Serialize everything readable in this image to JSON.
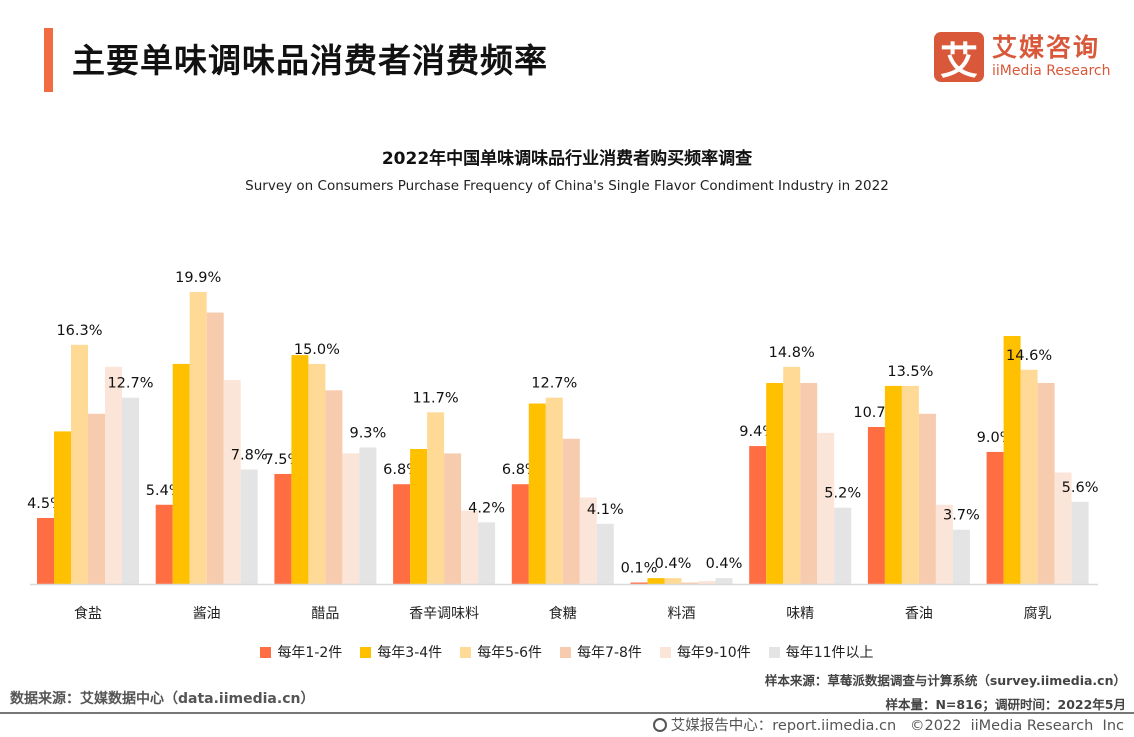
{
  "header": {
    "title": "主要单味调味品消费者消费频率",
    "logo_cn": "艾媒咨询",
    "logo_en": "iiMedia Research",
    "logo_glyph": "艾"
  },
  "chart_data": {
    "type": "bar",
    "title": "2022年中国单味调味品行业消费者购买频率调查",
    "subtitle": "Survey on Consumers Purchase Frequency of China's Single Flavor Condiment Industry in 2022",
    "categories": [
      "食盐",
      "酱油",
      "醋品",
      "香辛调味料",
      "食糖",
      "料酒",
      "味精",
      "香油",
      "腐乳"
    ],
    "ylim": [
      0,
      20
    ],
    "grid": false,
    "legend_position": "bottom",
    "labeled_series": [
      0,
      2,
      5
    ],
    "series": [
      {
        "name": "每年1-2件",
        "color": "#ff6d42",
        "values": [
          4.5,
          5.4,
          7.5,
          6.8,
          6.8,
          0.1,
          9.4,
          10.7,
          9.0
        ]
      },
      {
        "name": "每年3-4件",
        "color": "#ffc000",
        "values": [
          10.4,
          15.0,
          15.6,
          9.2,
          12.3,
          0.4,
          13.7,
          13.5,
          16.9
        ]
      },
      {
        "name": "每年5-6件",
        "color": "#ffda96",
        "values": [
          16.3,
          19.9,
          15.0,
          11.7,
          12.7,
          0.4,
          14.8,
          13.5,
          14.6
        ]
      },
      {
        "name": "每年7-8件",
        "color": "#f7cbad",
        "values": [
          11.6,
          18.5,
          13.2,
          8.9,
          9.9,
          0.1,
          13.7,
          11.6,
          13.7
        ]
      },
      {
        "name": "每年9-10件",
        "color": "#fbe5d9",
        "values": [
          14.8,
          13.9,
          8.9,
          5.0,
          5.9,
          0.2,
          10.3,
          5.4,
          7.6
        ]
      },
      {
        "name": "每年11件以上",
        "color": "#e4e4e4",
        "values": [
          12.7,
          7.8,
          9.3,
          4.2,
          4.1,
          0.4,
          5.2,
          3.7,
          5.6
        ]
      }
    ]
  },
  "notes": {
    "sample_source": "样本来源：草莓派数据调查与计算系统（survey.iimedia.cn）",
    "sample_size": "样本量：N=816；调研时间：2022年5月"
  },
  "data_source": "数据来源：艾媒数据中心（data.iimedia.cn）",
  "footer": {
    "text": "艾媒报告中心：report.iimedia.cn   ©2022  iiMedia Research  Inc"
  }
}
